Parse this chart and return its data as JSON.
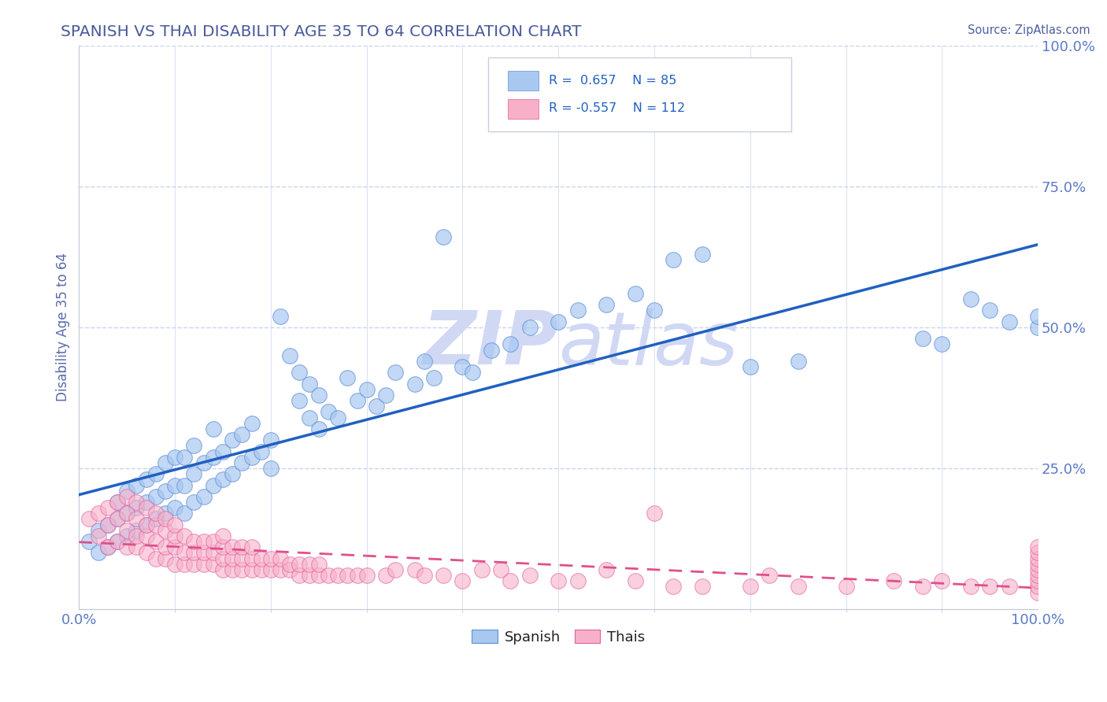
{
  "title": "SPANISH VS THAI DISABILITY AGE 35 TO 64 CORRELATION CHART",
  "source": "Source: ZipAtlas.com",
  "ylabel": "Disability Age 35 to 64",
  "xlim": [
    0.0,
    1.0
  ],
  "ylim": [
    0.0,
    1.0
  ],
  "title_color": "#4a5a9a",
  "source_color": "#5060a0",
  "axis_label_color": "#5a6aaa",
  "tick_color": "#5a7ac8",
  "grid_color": "#c8d4ee",
  "watermark_text": "ZIPatlas",
  "watermark_color": "#d0d8f4",
  "legend_r_spanish": "0.657",
  "legend_n_spanish": "85",
  "legend_r_thai": "-0.557",
  "legend_n_thai": "112",
  "spanish_color": "#a8c8f0",
  "spanish_edge_color": "#6090d8",
  "spanish_line_color": "#2060c0",
  "thai_color": "#f8b0c8",
  "thai_edge_color": "#e060a0",
  "thai_line_color": "#e0508c",
  "spanish_scatter": [
    [
      0.01,
      0.12
    ],
    [
      0.02,
      0.1
    ],
    [
      0.02,
      0.14
    ],
    [
      0.03,
      0.11
    ],
    [
      0.03,
      0.15
    ],
    [
      0.04,
      0.12
    ],
    [
      0.04,
      0.16
    ],
    [
      0.04,
      0.19
    ],
    [
      0.05,
      0.13
    ],
    [
      0.05,
      0.17
    ],
    [
      0.05,
      0.21
    ],
    [
      0.06,
      0.14
    ],
    [
      0.06,
      0.18
    ],
    [
      0.06,
      0.22
    ],
    [
      0.07,
      0.15
    ],
    [
      0.07,
      0.19
    ],
    [
      0.07,
      0.23
    ],
    [
      0.08,
      0.16
    ],
    [
      0.08,
      0.2
    ],
    [
      0.08,
      0.24
    ],
    [
      0.09,
      0.17
    ],
    [
      0.09,
      0.21
    ],
    [
      0.09,
      0.26
    ],
    [
      0.1,
      0.18
    ],
    [
      0.1,
      0.22
    ],
    [
      0.1,
      0.27
    ],
    [
      0.11,
      0.17
    ],
    [
      0.11,
      0.22
    ],
    [
      0.11,
      0.27
    ],
    [
      0.12,
      0.19
    ],
    [
      0.12,
      0.24
    ],
    [
      0.12,
      0.29
    ],
    [
      0.13,
      0.2
    ],
    [
      0.13,
      0.26
    ],
    [
      0.14,
      0.22
    ],
    [
      0.14,
      0.27
    ],
    [
      0.14,
      0.32
    ],
    [
      0.15,
      0.23
    ],
    [
      0.15,
      0.28
    ],
    [
      0.16,
      0.24
    ],
    [
      0.16,
      0.3
    ],
    [
      0.17,
      0.26
    ],
    [
      0.17,
      0.31
    ],
    [
      0.18,
      0.27
    ],
    [
      0.18,
      0.33
    ],
    [
      0.19,
      0.28
    ],
    [
      0.2,
      0.25
    ],
    [
      0.2,
      0.3
    ],
    [
      0.21,
      0.52
    ],
    [
      0.22,
      0.45
    ],
    [
      0.23,
      0.37
    ],
    [
      0.23,
      0.42
    ],
    [
      0.24,
      0.34
    ],
    [
      0.24,
      0.4
    ],
    [
      0.25,
      0.32
    ],
    [
      0.25,
      0.38
    ],
    [
      0.26,
      0.35
    ],
    [
      0.27,
      0.34
    ],
    [
      0.28,
      0.41
    ],
    [
      0.29,
      0.37
    ],
    [
      0.3,
      0.39
    ],
    [
      0.31,
      0.36
    ],
    [
      0.32,
      0.38
    ],
    [
      0.33,
      0.42
    ],
    [
      0.35,
      0.4
    ],
    [
      0.36,
      0.44
    ],
    [
      0.37,
      0.41
    ],
    [
      0.38,
      0.66
    ],
    [
      0.4,
      0.43
    ],
    [
      0.41,
      0.42
    ],
    [
      0.43,
      0.46
    ],
    [
      0.45,
      0.47
    ],
    [
      0.47,
      0.5
    ],
    [
      0.5,
      0.51
    ],
    [
      0.52,
      0.53
    ],
    [
      0.55,
      0.54
    ],
    [
      0.58,
      0.56
    ],
    [
      0.6,
      0.53
    ],
    [
      0.62,
      0.62
    ],
    [
      0.65,
      0.63
    ],
    [
      0.7,
      0.43
    ],
    [
      0.75,
      0.44
    ],
    [
      0.88,
      0.48
    ],
    [
      0.9,
      0.47
    ],
    [
      0.93,
      0.55
    ],
    [
      0.95,
      0.53
    ],
    [
      0.97,
      0.51
    ],
    [
      1.0,
      0.5
    ],
    [
      1.0,
      0.52
    ]
  ],
  "thai_scatter": [
    [
      0.01,
      0.16
    ],
    [
      0.02,
      0.13
    ],
    [
      0.02,
      0.17
    ],
    [
      0.03,
      0.11
    ],
    [
      0.03,
      0.15
    ],
    [
      0.03,
      0.18
    ],
    [
      0.04,
      0.12
    ],
    [
      0.04,
      0.16
    ],
    [
      0.04,
      0.19
    ],
    [
      0.05,
      0.11
    ],
    [
      0.05,
      0.14
    ],
    [
      0.05,
      0.17
    ],
    [
      0.05,
      0.2
    ],
    [
      0.06,
      0.11
    ],
    [
      0.06,
      0.13
    ],
    [
      0.06,
      0.16
    ],
    [
      0.06,
      0.19
    ],
    [
      0.07,
      0.1
    ],
    [
      0.07,
      0.13
    ],
    [
      0.07,
      0.15
    ],
    [
      0.07,
      0.18
    ],
    [
      0.08,
      0.09
    ],
    [
      0.08,
      0.12
    ],
    [
      0.08,
      0.15
    ],
    [
      0.08,
      0.17
    ],
    [
      0.09,
      0.09
    ],
    [
      0.09,
      0.11
    ],
    [
      0.09,
      0.14
    ],
    [
      0.09,
      0.16
    ],
    [
      0.1,
      0.08
    ],
    [
      0.1,
      0.11
    ],
    [
      0.1,
      0.13
    ],
    [
      0.1,
      0.15
    ],
    [
      0.11,
      0.08
    ],
    [
      0.11,
      0.1
    ],
    [
      0.11,
      0.13
    ],
    [
      0.12,
      0.08
    ],
    [
      0.12,
      0.1
    ],
    [
      0.12,
      0.12
    ],
    [
      0.13,
      0.08
    ],
    [
      0.13,
      0.1
    ],
    [
      0.13,
      0.12
    ],
    [
      0.14,
      0.08
    ],
    [
      0.14,
      0.1
    ],
    [
      0.14,
      0.12
    ],
    [
      0.15,
      0.07
    ],
    [
      0.15,
      0.09
    ],
    [
      0.15,
      0.11
    ],
    [
      0.15,
      0.13
    ],
    [
      0.16,
      0.07
    ],
    [
      0.16,
      0.09
    ],
    [
      0.16,
      0.11
    ],
    [
      0.17,
      0.07
    ],
    [
      0.17,
      0.09
    ],
    [
      0.17,
      0.11
    ],
    [
      0.18,
      0.07
    ],
    [
      0.18,
      0.09
    ],
    [
      0.18,
      0.11
    ],
    [
      0.19,
      0.07
    ],
    [
      0.19,
      0.09
    ],
    [
      0.2,
      0.07
    ],
    [
      0.2,
      0.09
    ],
    [
      0.21,
      0.07
    ],
    [
      0.21,
      0.09
    ],
    [
      0.22,
      0.07
    ],
    [
      0.22,
      0.08
    ],
    [
      0.23,
      0.06
    ],
    [
      0.23,
      0.08
    ],
    [
      0.24,
      0.06
    ],
    [
      0.24,
      0.08
    ],
    [
      0.25,
      0.06
    ],
    [
      0.25,
      0.08
    ],
    [
      0.26,
      0.06
    ],
    [
      0.27,
      0.06
    ],
    [
      0.28,
      0.06
    ],
    [
      0.29,
      0.06
    ],
    [
      0.3,
      0.06
    ],
    [
      0.32,
      0.06
    ],
    [
      0.33,
      0.07
    ],
    [
      0.35,
      0.07
    ],
    [
      0.36,
      0.06
    ],
    [
      0.38,
      0.06
    ],
    [
      0.4,
      0.05
    ],
    [
      0.42,
      0.07
    ],
    [
      0.44,
      0.07
    ],
    [
      0.45,
      0.05
    ],
    [
      0.47,
      0.06
    ],
    [
      0.5,
      0.05
    ],
    [
      0.52,
      0.05
    ],
    [
      0.55,
      0.07
    ],
    [
      0.58,
      0.05
    ],
    [
      0.6,
      0.17
    ],
    [
      0.62,
      0.04
    ],
    [
      0.65,
      0.04
    ],
    [
      0.7,
      0.04
    ],
    [
      0.72,
      0.06
    ],
    [
      0.75,
      0.04
    ],
    [
      0.8,
      0.04
    ],
    [
      0.85,
      0.05
    ],
    [
      0.88,
      0.04
    ],
    [
      0.9,
      0.05
    ],
    [
      0.93,
      0.04
    ],
    [
      0.95,
      0.04
    ],
    [
      0.97,
      0.04
    ],
    [
      1.0,
      0.03
    ],
    [
      1.0,
      0.04
    ],
    [
      1.0,
      0.05
    ],
    [
      1.0,
      0.06
    ],
    [
      1.0,
      0.07
    ],
    [
      1.0,
      0.08
    ],
    [
      1.0,
      0.09
    ],
    [
      1.0,
      0.1
    ],
    [
      1.0,
      0.11
    ]
  ],
  "background_color": "#ffffff",
  "ytick_right_labels": [
    "25.0%",
    "50.0%",
    "75.0%",
    "100.0%"
  ],
  "ytick_right_positions": [
    0.25,
    0.5,
    0.75,
    1.0
  ]
}
